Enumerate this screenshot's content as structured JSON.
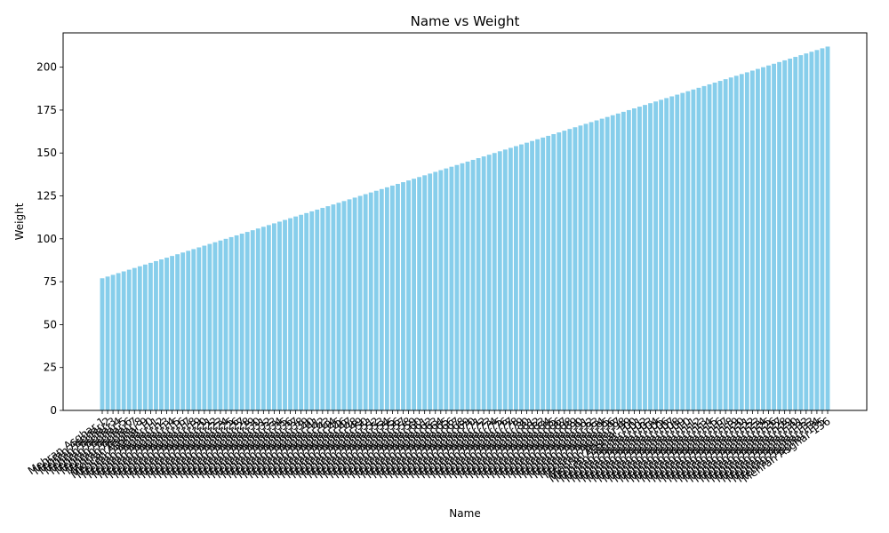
{
  "chart_data": {
    "type": "bar",
    "title": "Name vs Weight",
    "xlabel": "Name",
    "ylabel": "Weight",
    "ylim": [
      0,
      220
    ],
    "yticks": [
      0,
      25,
      50,
      75,
      100,
      125,
      150,
      175,
      200
    ],
    "grid": false,
    "bar_color": "#87ceeb",
    "categories": [
      "Mehran Asghar 1",
      "Mehran Asghar 2",
      "Mehran Asghar 3",
      "Mehran Asghar 4",
      "Mehran Asghar 5",
      "Mehran Asghar 6",
      "Mehran Asghar 7",
      "Mehran Asghar 8",
      "Mehran Asghar 9",
      "Mehran Asghar 10",
      "Mehran Asghar 11",
      "Mehran Asghar 12",
      "Mehran Asghar 13",
      "Mehran Asghar 14",
      "Mehran Asghar 15",
      "Mehran Asghar 16",
      "Mehran Asghar 17",
      "Mehran Asghar 18",
      "Mehran Asghar 19",
      "Mehran Asghar 20",
      "Mehran Asghar 21",
      "Mehran Asghar 22",
      "Mehran Asghar 23",
      "Mehran Asghar 24",
      "Mehran Asghar 25",
      "Mehran Asghar 26",
      "Mehran Asghar 27",
      "Mehran Asghar 28",
      "Mehran Asghar 29",
      "Mehran Asghar 30",
      "Mehran Asghar 31",
      "Mehran Asghar 32",
      "Mehran Asghar 33",
      "Mehran Asghar 34",
      "Mehran Asghar 35",
      "Mehran Asghar 36",
      "Mehran Asghar 37",
      "Mehran Asghar 38",
      "Mehran Asghar 39",
      "Mehran Asghar 40",
      "Mehran Asghar 41",
      "Mehran Asghar 42",
      "Mehran Asghar 43",
      "Mehran Asghar 44",
      "Mehran Asghar 45",
      "Mehran Asghar 46",
      "Mehran Asghar 47",
      "Mehran Asghar 48",
      "Mehran Asghar 49",
      "Mehran Asghar 50",
      "Mehran Asghar 51",
      "Mehran Asghar 52",
      "Mehran Asghar 53",
      "Mehran Asghar 54",
      "Mehran Asghar 55",
      "Mehran Asghar 56",
      "Mehran Asghar 57",
      "Mehran Asghar 58",
      "Mehran Asghar 59",
      "Mehran Asghar 60",
      "Mehran Asghar 61",
      "Mehran Asghar 62",
      "Mehran Asghar 63",
      "Mehran Asghar 64",
      "Mehran Asghar 65",
      "Mehran Asghar 66",
      "Mehran Asghar 67",
      "Mehran Asghar 68",
      "Mehran Asghar 69",
      "Mehran Asghar 70",
      "Mehran Asghar 71",
      "Mehran Asghar 72",
      "Mehran Asghar 73",
      "Mehran Asghar 74",
      "Mehran Asghar 75",
      "Mehran Asghar 76",
      "Mehran Asghar 77",
      "Mehran Asghar 78",
      "Mehran Asghar 79",
      "Mehran Asghar 80",
      "Mehran Asghar 81",
      "Mehran Asghar 82",
      "Mehran Asghar 83",
      "Mehran Asghar 84",
      "Mehran Asghar 85",
      "Mehran Asghar 86",
      "Mehran Asghar 87",
      "Mehran Asghar 88",
      "Mehran Asghar 89",
      "Mehran Asghar 90",
      "Mehran Asghar 91",
      "Mehran Asghar 92",
      "Mehran Asghar 93",
      "Mehran Asghar 94",
      "Mehran Asghar 95",
      "Mehran Asghar 96",
      "Mehran Asghar 97",
      "Mehran Asghar 98",
      "Mehran Asghar 99",
      "Mehran Asghar 100",
      "Mehran Asghar 101",
      "Mehran Asghar 102",
      "Mehran Asghar 103",
      "Mehran Asghar 104",
      "Mehran Asghar 105",
      "Mehran Asghar 106",
      "Mehran Asghar 107",
      "Mehran Asghar 108",
      "Mehran Asghar 109",
      "Mehran Asghar 110",
      "Mehran Asghar 111",
      "Mehran Asghar 112",
      "Mehran Asghar 113",
      "Mehran Asghar 114",
      "Mehran Asghar 115",
      "Mehran Asghar 116",
      "Mehran Asghar 117",
      "Mehran Asghar 118",
      "Mehran Asghar 119",
      "Mehran Asghar 120",
      "Mehran Asghar 121",
      "Mehran Asghar 122",
      "Mehran Asghar 123",
      "Mehran Asghar 124",
      "Mehran Asghar 125",
      "Mehran Asghar 126",
      "Mehran Asghar 127",
      "Mehran Asghar 128",
      "Mehran Asghar 129",
      "Mehran Asghar 130",
      "Mehran Asghar 131",
      "Mehran Asghar 132",
      "Mehran Asghar 133",
      "Mehran Asghar 134",
      "Mehran Asghar 135",
      "Mehran Asghar 136"
    ],
    "values": [
      77,
      78,
      79,
      80,
      81,
      82,
      83,
      84,
      85,
      86,
      87,
      88,
      89,
      90,
      91,
      92,
      93,
      94,
      95,
      96,
      97,
      98,
      99,
      100,
      101,
      102,
      103,
      104,
      105,
      106,
      107,
      108,
      109,
      110,
      111,
      112,
      113,
      114,
      115,
      116,
      117,
      118,
      119,
      120,
      121,
      122,
      123,
      124,
      125,
      126,
      127,
      128,
      129,
      130,
      131,
      132,
      133,
      134,
      135,
      136,
      137,
      138,
      139,
      140,
      141,
      142,
      143,
      144,
      145,
      146,
      147,
      148,
      149,
      150,
      151,
      152,
      153,
      154,
      155,
      156,
      157,
      158,
      159,
      160,
      161,
      162,
      163,
      164,
      165,
      166,
      167,
      168,
      169,
      170,
      171,
      172,
      173,
      174,
      175,
      176,
      177,
      178,
      179,
      180,
      181,
      182,
      183,
      184,
      185,
      186,
      187,
      188,
      189,
      190,
      191,
      192,
      193,
      194,
      195,
      196,
      197,
      198,
      199,
      200,
      201,
      202,
      203,
      204,
      205,
      206,
      207,
      208,
      209,
      210,
      211,
      212
    ]
  }
}
